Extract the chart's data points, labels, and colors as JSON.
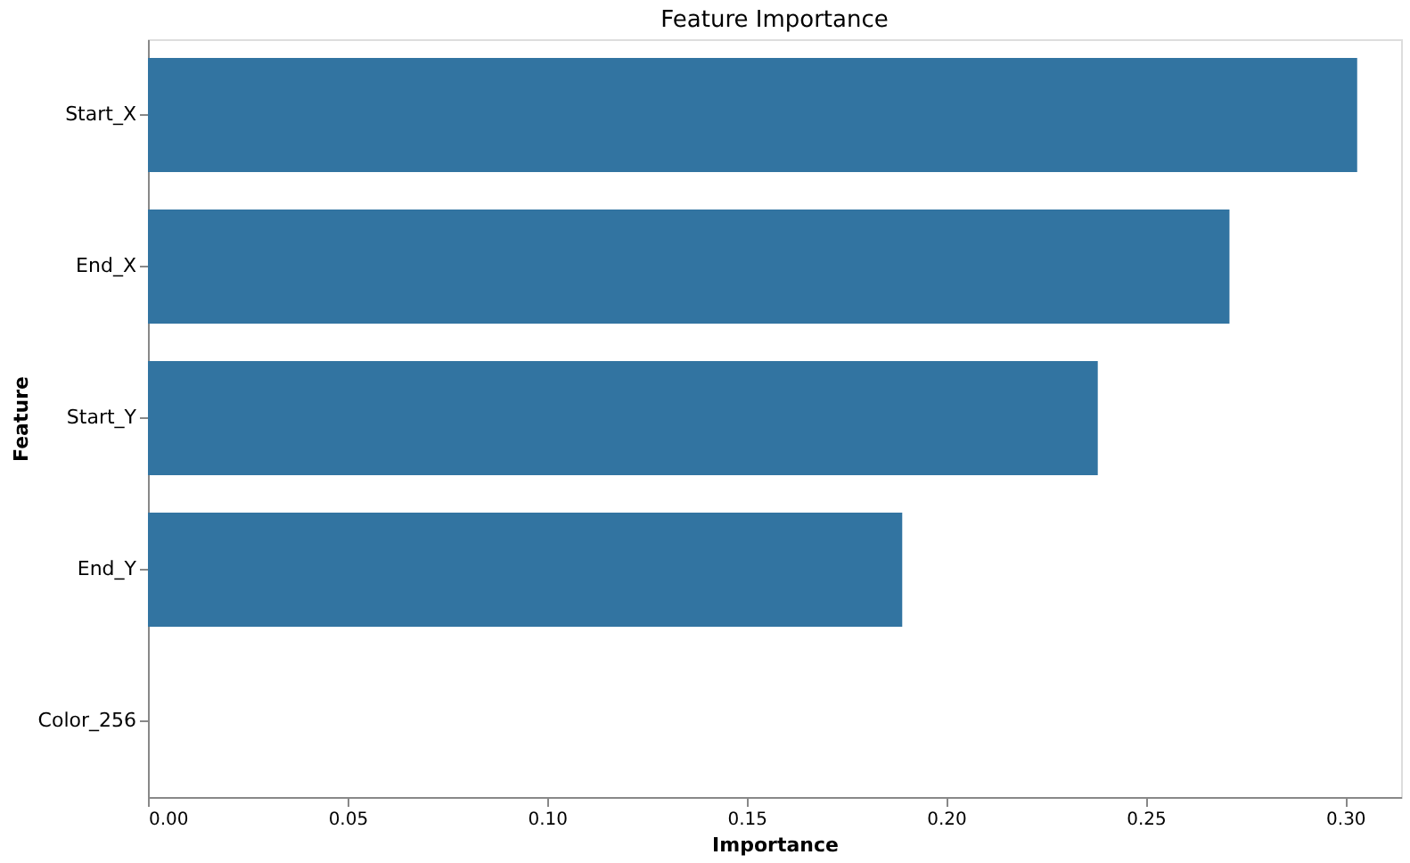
{
  "chart_data": {
    "type": "bar",
    "orientation": "horizontal",
    "title": "Feature Importance",
    "xlabel": "Importance",
    "ylabel": "Feature",
    "categories": [
      "Start_X",
      "End_X",
      "Start_Y",
      "End_Y",
      "Color_256"
    ],
    "values": [
      0.303,
      0.271,
      0.238,
      0.189,
      0
    ],
    "color": "#3274a1",
    "xlim": [
      0,
      0.314
    ],
    "xticks": [
      {
        "value": 0,
        "label": "0.00"
      },
      {
        "value": 0.05,
        "label": "0.05"
      },
      {
        "value": 0.1,
        "label": "0.10"
      },
      {
        "value": 0.15,
        "label": "0.15"
      },
      {
        "value": 0.2,
        "label": "0.20"
      },
      {
        "value": 0.25,
        "label": "0.25"
      },
      {
        "value": 0.3,
        "label": "0.30"
      }
    ],
    "grid": false
  }
}
